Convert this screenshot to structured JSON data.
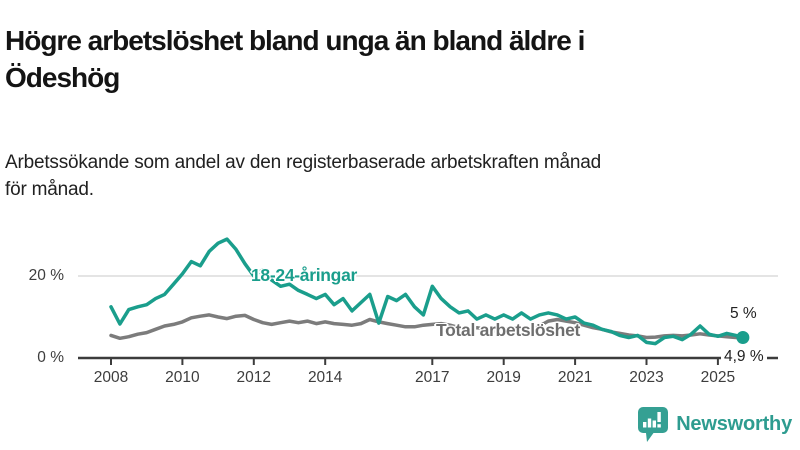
{
  "header": {
    "title": "Högre arbetslöshet bland unga än bland äldre i\nÖdeshög",
    "subtitle": "Arbetssökande som andel av den registerbaserade arbetskraften månad\nför månad."
  },
  "chart_data": {
    "type": "line",
    "x_unit": "decimal_year",
    "xlim": [
      2007.1,
      2026.7
    ],
    "ylim": [
      0,
      31
    ],
    "grid": "horizontal-20-only",
    "x_ticks": [
      2008,
      2010,
      2012,
      2014,
      2017,
      2019,
      2021,
      2023,
      2025
    ],
    "y_ticks": [
      {
        "value": 0,
        "label": "0 %"
      },
      {
        "value": 20,
        "label": "20 %"
      }
    ],
    "x": [
      2008,
      2008.25,
      2008.5,
      2008.75,
      2009,
      2009.25,
      2009.5,
      2009.75,
      2010,
      2010.25,
      2010.5,
      2010.75,
      2011,
      2011.25,
      2011.5,
      2011.75,
      2012,
      2012.25,
      2012.5,
      2012.75,
      2013,
      2013.25,
      2013.5,
      2013.75,
      2014,
      2014.25,
      2014.5,
      2014.75,
      2015,
      2015.25,
      2015.5,
      2015.75,
      2016,
      2016.25,
      2016.5,
      2016.75,
      2017,
      2017.25,
      2017.5,
      2017.75,
      2018,
      2018.25,
      2018.5,
      2018.75,
      2019,
      2019.25,
      2019.5,
      2019.75,
      2020,
      2020.25,
      2020.5,
      2020.75,
      2021,
      2021.25,
      2021.5,
      2021.75,
      2022,
      2022.25,
      2022.5,
      2022.75,
      2023,
      2023.25,
      2023.5,
      2023.75,
      2024,
      2024.25,
      2024.5,
      2024.75,
      2025,
      2025.25,
      2025.5,
      2025.7
    ],
    "series": [
      {
        "name": "18-24-åringar",
        "color": "#1a9e8c",
        "end_label": "5 %",
        "end_marker": "dot",
        "values": [
          12.5,
          8.3,
          11.8,
          12.5,
          13.0,
          14.5,
          15.5,
          18.0,
          20.5,
          23.5,
          22.5,
          26.0,
          28.0,
          29.0,
          26.5,
          23.0,
          20.0,
          21.5,
          19.0,
          17.5,
          18.0,
          16.5,
          15.5,
          14.5,
          15.5,
          13.0,
          14.5,
          11.5,
          13.5,
          15.5,
          8.5,
          15.0,
          14.0,
          15.5,
          12.5,
          10.5,
          17.5,
          14.5,
          12.5,
          11.0,
          11.5,
          9.5,
          10.5,
          9.5,
          10.5,
          9.5,
          11.0,
          9.5,
          10.5,
          11.0,
          10.5,
          9.5,
          10.0,
          8.5,
          8.0,
          7.0,
          6.5,
          5.5,
          5.0,
          5.5,
          3.8,
          3.5,
          5.0,
          5.3,
          4.5,
          5.8,
          7.8,
          5.8,
          5.3,
          6.0,
          5.5,
          5.0
        ]
      },
      {
        "name": "Total arbetslöshet",
        "color": "#7c7c7c",
        "end_label": "4,9 %",
        "end_marker": "none",
        "values": [
          5.5,
          4.8,
          5.2,
          5.8,
          6.2,
          7.0,
          7.8,
          8.2,
          8.8,
          9.8,
          10.2,
          10.5,
          10.0,
          9.6,
          10.2,
          10.4,
          9.4,
          8.6,
          8.2,
          8.6,
          9.0,
          8.6,
          9.0,
          8.4,
          8.8,
          8.4,
          8.2,
          8.0,
          8.4,
          9.4,
          8.8,
          8.4,
          8.0,
          7.6,
          7.6,
          8.0,
          8.2,
          8.4,
          8.0,
          7.4,
          7.0,
          7.4,
          7.0,
          6.6,
          7.0,
          7.4,
          7.2,
          7.4,
          7.8,
          9.0,
          9.4,
          9.0,
          8.6,
          8.0,
          7.4,
          7.0,
          6.4,
          6.0,
          5.6,
          5.4,
          5.0,
          5.1,
          5.4,
          5.5,
          5.4,
          5.6,
          5.9,
          5.6,
          5.4,
          5.2,
          5.0,
          4.9
        ]
      }
    ],
    "colors": {
      "axis": "#3c3c3c",
      "gridline": "#dcdcdc",
      "tick_text": "#3d3d3d",
      "series_label_total": "#6e6e6e",
      "end_label_text": "#222222"
    }
  },
  "footer": {
    "brand": "Newsworthy",
    "brand_color": "#2e9c90"
  }
}
